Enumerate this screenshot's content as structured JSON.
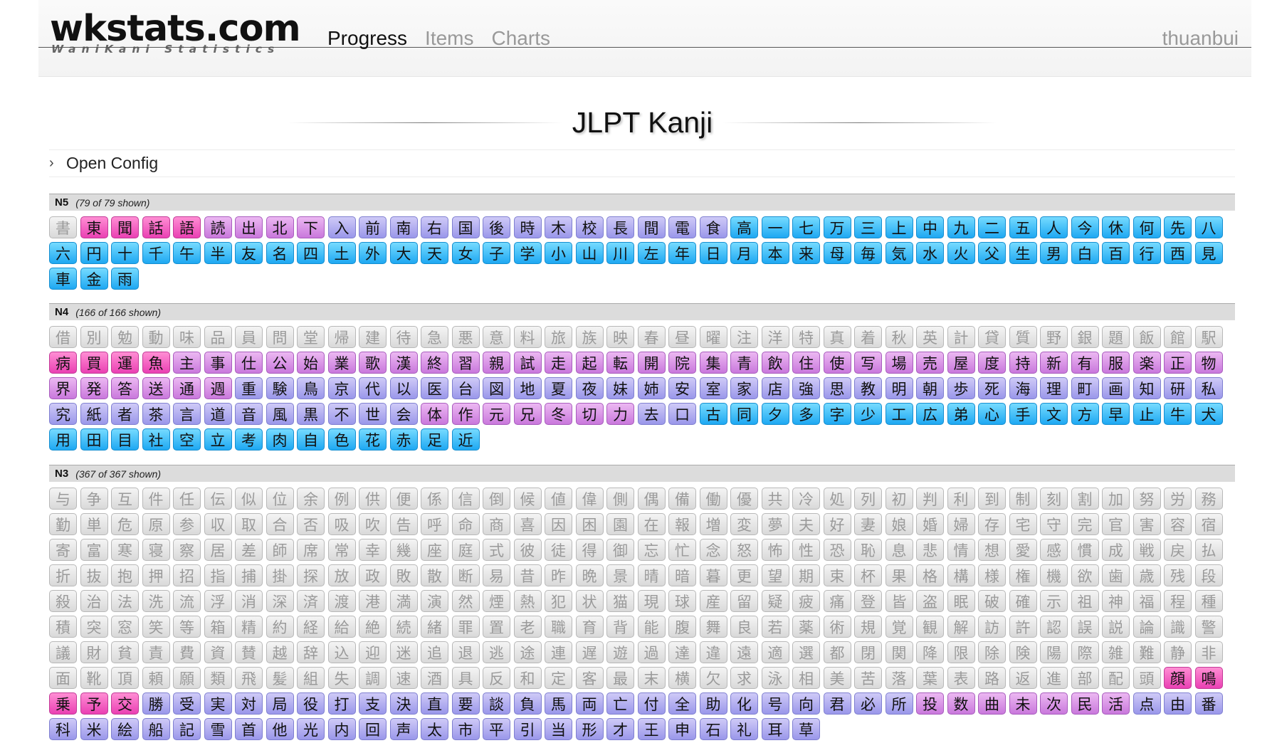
{
  "header": {
    "logo_main": "wkstats.com",
    "logo_sub": "WaniKani Statistics",
    "nav": [
      {
        "label": "Progress",
        "active": true
      },
      {
        "label": "Items",
        "active": false
      },
      {
        "label": "Charts",
        "active": false
      }
    ],
    "user": "thuanbui"
  },
  "page_title": "JLPT Kanji",
  "config_label": "Open Config",
  "colors": {
    "locked_gray": "#e3e3e3",
    "magenta": "#f065c4",
    "pink_purple": "#d995e6",
    "lavender": "#b3b0f0",
    "blue": "#3fbcf6"
  },
  "sections": [
    {
      "name": "N5",
      "count": "(79 of 79 shown)",
      "kanji": "書東聞話語読出北下入前南右国後時木校長間電食高一七万三上中九二五人今休何先八六円十千午半友名四土外大天女子学小山川左年日月本来母毎気水火父生男白百行西見車金雨",
      "colors": "gmmmmppppuuuuuuuuuuuuubbbbbbbbbbbbbbbbbbbbbbbbbbbbbbbbbbbbbbbbbbbbbbbbbbbbbbbbbb"
    },
    {
      "name": "N4",
      "count": "(166 of 166 shown)",
      "kanji": "借別勉動味品員問堂帰建待急悪意料旅族映春昼曜注洋特真着秋英計貸質野銀題飯館駅病買運魚主事仕公始業歌漢終習親試走起転開院集青飲住使写場売屋度持新有服楽正物界発答送通週重験鳥京代以医台図地夏夜妹姉安室家店強思教明朝歩死海理町画知研私究紙者茶言道音風黒不世会体作元兄冬切力去口古同夕多字少工広弟心手文方早止牛犬用田目社空立考肉自色花赤足近",
      "colors": "ggggggggggggggggggggggggggggggggggggggmmmmppppppppppppppppppppppppppppppppppppppppuuuuuuuuuuuuuuuuuuuuuuuuuuuuuuuuuuuuuuuuuuuupppppppuubbbbbbbbbbbbbbbbbbbbbbbbbbbbbbbbbbbbbbbbbbbbbbbbbbbbb"
    },
    {
      "name": "N3",
      "count": "(367 of 367 shown)",
      "kanji": "与争互件任伝似位余例供便係信倒候値偉側偶備働優共冷処列初判利到制刻割加努労務勤単危原参収取合否吸吹告呼命商喜因困園在報増変夢夫好妻娘婚婦存宅守完官害容宿寄富寒寝察居差師席常幸幾座庭式彼徒得御忘忙念怒怖性恐恥息悲情想愛感慣成戦戻払折抜抱押招指捕掛探放政敗散断易昔昨晩景晴暗暮更望期束杯果格構様権機欲歯歳残段殺治法洗流浮消深済渡港満演然煙熱犯状猫現球産留疑疲痛登皆盗眠破確示祖神福程種積突窓笑等箱精約経給絶続緒罪置老職育背能腹舞良若薬術規覚観解訪許認誤説論識警議財貧責費資賛越辞込迎迷追退逃途連遅遊過達違遠適選都閉関降限除険陽際雑難静非面靴頂頼願類飛髪組失調速酒具反和定客最末横欠求泳相美苦落葉表路返進部配頭顔鳴乗予交勝受実対局役打支決直要談負馬両亡付全助化号向君必所投数曲未次民活点由番科米絵船記雪首他光内回声太市平引当形才王申石礼耳草"
    }
  ]
}
